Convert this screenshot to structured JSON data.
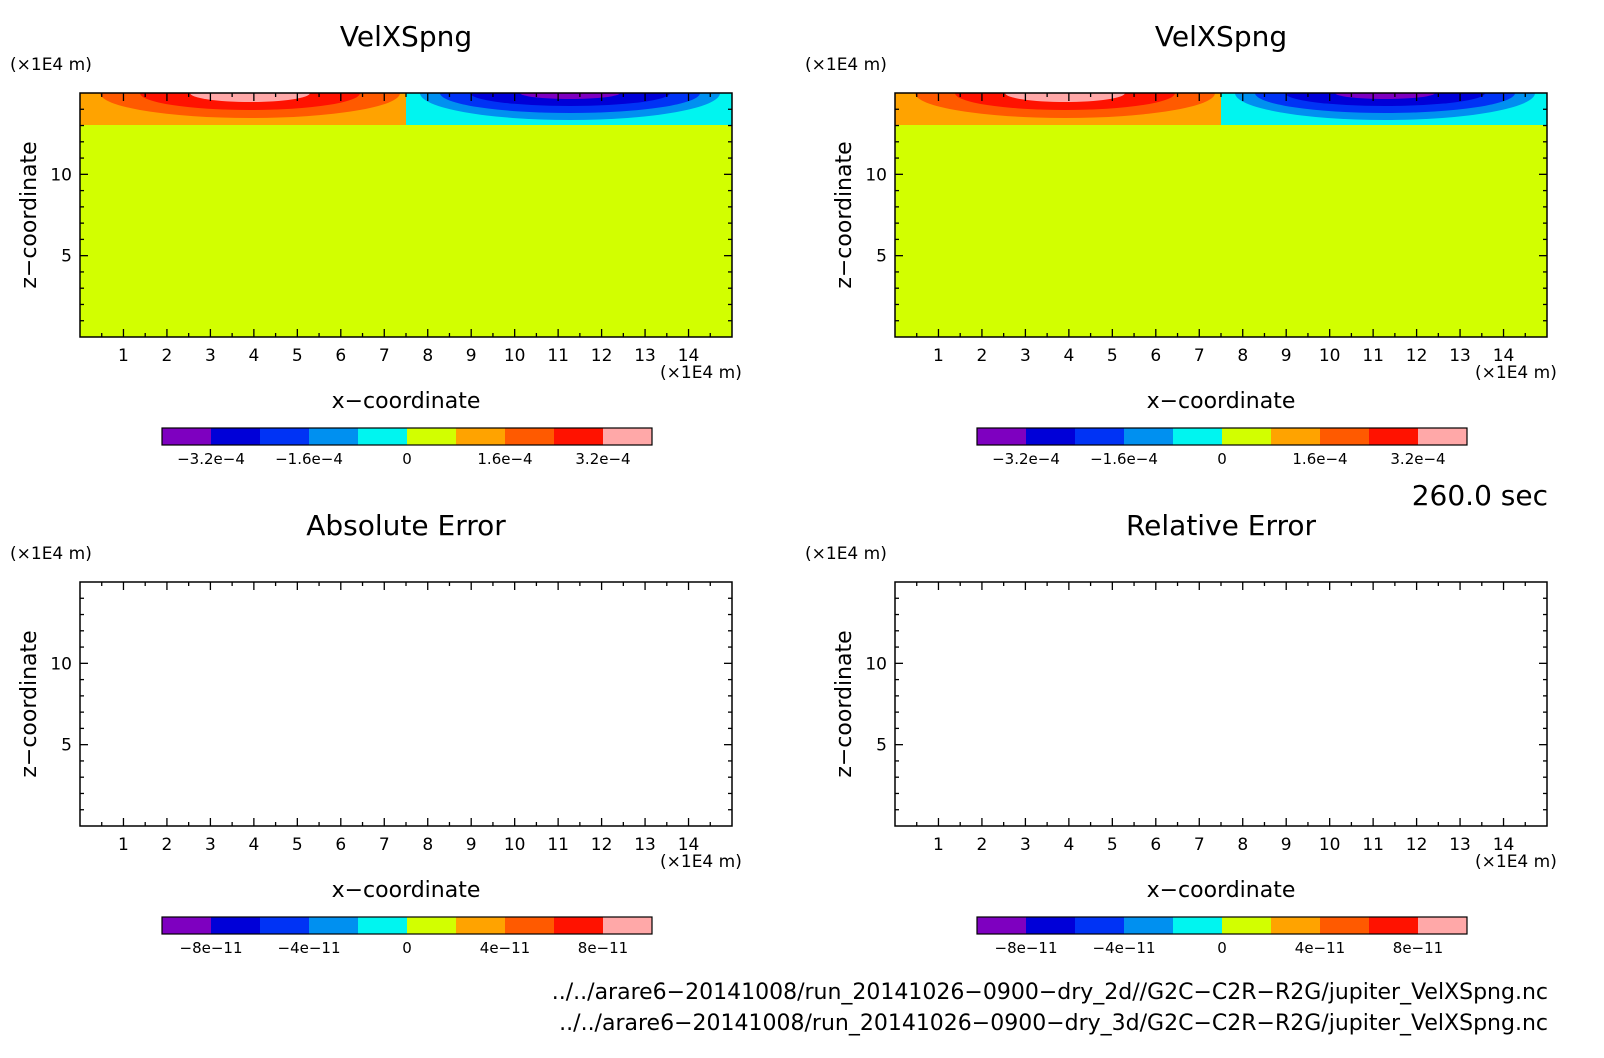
{
  "chart_data": [
    {
      "type": "heatmap",
      "title": "VelXSpng",
      "xlabel": "x−coordinate",
      "ylabel": "z−coordinate",
      "x_unit": "(×1E4 m)",
      "y_unit": "(×1E4 m)",
      "xlim": [
        0,
        15
      ],
      "ylim": [
        0,
        15
      ],
      "x_ticks": [
        "1",
        "2",
        "3",
        "4",
        "5",
        "6",
        "7",
        "8",
        "9",
        "10",
        "11",
        "12",
        "13",
        "14"
      ],
      "y_ticks": [
        "5",
        "10"
      ],
      "field": "positive sponge velocity over x 0–7.5 near top (z 13–15), negative over x 7.5–15; zero elsewhere",
      "colorbar": {
        "levels": 10,
        "colors": [
          "#7e00c0",
          "#0000d8",
          "#0033f5",
          "#0090f0",
          "#00f5f0",
          "#d2ff00",
          "#ffa300",
          "#ff5a00",
          "#ff1200",
          "#ffa8a8"
        ],
        "labels": [
          "−3.2e−4",
          "−1.6e−4",
          "0",
          "1.6e−4",
          "3.2e−4"
        ]
      }
    },
    {
      "type": "heatmap",
      "title": "VelXSpng",
      "xlabel": "x−coordinate",
      "ylabel": "z−coordinate",
      "x_unit": "(×1E4 m)",
      "y_unit": "(×1E4 m)",
      "xlim": [
        0,
        15
      ],
      "ylim": [
        0,
        15
      ],
      "x_ticks": [
        "1",
        "2",
        "3",
        "4",
        "5",
        "6",
        "7",
        "8",
        "9",
        "10",
        "11",
        "12",
        "13",
        "14"
      ],
      "y_ticks": [
        "5",
        "10"
      ],
      "colorbar": {
        "levels": 10,
        "colors": [
          "#7e00c0",
          "#0000d8",
          "#0033f5",
          "#0090f0",
          "#00f5f0",
          "#d2ff00",
          "#ffa300",
          "#ff5a00",
          "#ff1200",
          "#ffa8a8"
        ],
        "labels": [
          "−3.2e−4",
          "−1.6e−4",
          "0",
          "1.6e−4",
          "3.2e−4"
        ]
      }
    },
    {
      "type": "heatmap",
      "title": "Absolute Error",
      "xlabel": "x−coordinate",
      "ylabel": "z−coordinate",
      "x_unit": "(×1E4 m)",
      "y_unit": "(×1E4 m)",
      "xlim": [
        0,
        15
      ],
      "ylim": [
        0,
        15
      ],
      "x_ticks": [
        "1",
        "2",
        "3",
        "4",
        "5",
        "6",
        "7",
        "8",
        "9",
        "10",
        "11",
        "12",
        "13",
        "14"
      ],
      "y_ticks": [
        "5",
        "10"
      ],
      "colorbar": {
        "levels": 10,
        "colors": [
          "#7e00c0",
          "#0000d8",
          "#0033f5",
          "#0090f0",
          "#00f5f0",
          "#d2ff00",
          "#ffa300",
          "#ff5a00",
          "#ff1200",
          "#ffa8a8"
        ],
        "labels": [
          "−8e−11",
          "−4e−11",
          "0",
          "4e−11",
          "8e−11"
        ]
      }
    },
    {
      "type": "heatmap",
      "title": "Relative Error",
      "xlabel": "x−coordinate",
      "ylabel": "z−coordinate",
      "x_unit": "(×1E4 m)",
      "y_unit": "(×1E4 m)",
      "xlim": [
        0,
        15
      ],
      "ylim": [
        0,
        15
      ],
      "x_ticks": [
        "1",
        "2",
        "3",
        "4",
        "5",
        "6",
        "7",
        "8",
        "9",
        "10",
        "11",
        "12",
        "13",
        "14"
      ],
      "y_ticks": [
        "5",
        "10"
      ],
      "colorbar": {
        "levels": 10,
        "colors": [
          "#7e00c0",
          "#0000d8",
          "#0033f5",
          "#0090f0",
          "#00f5f0",
          "#d2ff00",
          "#ffa300",
          "#ff5a00",
          "#ff1200",
          "#ffa8a8"
        ],
        "labels": [
          "−8e−11",
          "−4e−11",
          "0",
          "4e−11",
          "8e−11"
        ]
      }
    }
  ],
  "time_label": "260.0 sec",
  "footer": {
    "file1": "../../arare6−20141008/run_20141026−0900−dry_2d//G2C−C2R−R2G/jupiter_VelXSpng.nc",
    "file2": "../../arare6−20141008/run_20141026−0900−dry_3d/G2C−C2R−R2G/jupiter_VelXSpng.nc"
  }
}
